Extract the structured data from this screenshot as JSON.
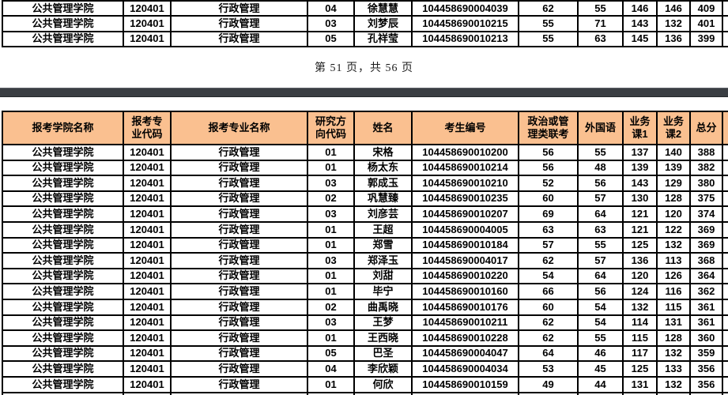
{
  "page": {
    "footer": "第 51 页，共 56 页"
  },
  "colors": {
    "header_bg": "#FAC090",
    "grid_border": "#000000",
    "separator_bar": "#3A3E43",
    "page_bg": "#FFFFFF",
    "text": "#000000"
  },
  "top_table": {
    "rows": [
      [
        "公共管理学院",
        "120401",
        "行政管理",
        "04",
        "徐慧慧",
        "104458690004039",
        "62",
        "55",
        "146",
        "146",
        "409"
      ],
      [
        "公共管理学院",
        "120401",
        "行政管理",
        "03",
        "刘梦辰",
        "104458690010215",
        "55",
        "71",
        "143",
        "132",
        "401"
      ],
      [
        "公共管理学院",
        "120401",
        "行政管理",
        "05",
        "孔祥莹",
        "104458690010213",
        "55",
        "63",
        "145",
        "136",
        "399"
      ]
    ]
  },
  "main_table": {
    "headers": [
      "报考学院名称",
      "报考专\n业代码",
      "报考专业名称",
      "研究方\n向代码",
      "姓名",
      "考生编号",
      "政治或管\n理类联考",
      "外国语",
      "业务\n课1",
      "业务\n课2",
      "总分"
    ],
    "rows": [
      [
        "公共管理学院",
        "120401",
        "行政管理",
        "01",
        "宋格",
        "104458690010200",
        "56",
        "55",
        "137",
        "140",
        "388"
      ],
      [
        "公共管理学院",
        "120401",
        "行政管理",
        "01",
        "杨太东",
        "104458690010214",
        "56",
        "48",
        "139",
        "139",
        "382"
      ],
      [
        "公共管理学院",
        "120401",
        "行政管理",
        "03",
        "郭成玉",
        "104458690010210",
        "52",
        "56",
        "143",
        "129",
        "380"
      ],
      [
        "公共管理学院",
        "120401",
        "行政管理",
        "02",
        "巩慧臻",
        "104458690010235",
        "60",
        "57",
        "130",
        "128",
        "375"
      ],
      [
        "公共管理学院",
        "120401",
        "行政管理",
        "03",
        "刘彦芸",
        "104458690010207",
        "69",
        "64",
        "121",
        "120",
        "374"
      ],
      [
        "公共管理学院",
        "120401",
        "行政管理",
        "01",
        "王超",
        "104458690004005",
        "63",
        "63",
        "121",
        "122",
        "369"
      ],
      [
        "公共管理学院",
        "120401",
        "行政管理",
        "01",
        "郑雪",
        "104458690010184",
        "57",
        "55",
        "125",
        "132",
        "369"
      ],
      [
        "公共管理学院",
        "120401",
        "行政管理",
        "03",
        "郑泽玉",
        "104458690004017",
        "62",
        "57",
        "136",
        "113",
        "368"
      ],
      [
        "公共管理学院",
        "120401",
        "行政管理",
        "01",
        "刘甜",
        "104458690010220",
        "54",
        "64",
        "120",
        "126",
        "364"
      ],
      [
        "公共管理学院",
        "120401",
        "行政管理",
        "01",
        "毕宁",
        "104458690010160",
        "66",
        "56",
        "124",
        "116",
        "362"
      ],
      [
        "公共管理学院",
        "120401",
        "行政管理",
        "02",
        "曲禹晓",
        "104458690010176",
        "60",
        "54",
        "132",
        "115",
        "361"
      ],
      [
        "公共管理学院",
        "120401",
        "行政管理",
        "03",
        "王梦",
        "104458690010211",
        "62",
        "54",
        "114",
        "131",
        "361"
      ],
      [
        "公共管理学院",
        "120401",
        "行政管理",
        "01",
        "王西晓",
        "104458690010228",
        "62",
        "55",
        "115",
        "128",
        "360"
      ],
      [
        "公共管理学院",
        "120401",
        "行政管理",
        "05",
        "巴圣",
        "104458690004047",
        "64",
        "46",
        "117",
        "132",
        "359"
      ],
      [
        "公共管理学院",
        "120401",
        "行政管理",
        "04",
        "李欣颖",
        "104458690004034",
        "53",
        "45",
        "125",
        "133",
        "356"
      ],
      [
        "公共管理学院",
        "120401",
        "行政管理",
        "01",
        "何欣",
        "104458690010159",
        "49",
        "44",
        "131",
        "132",
        "356"
      ]
    ]
  }
}
